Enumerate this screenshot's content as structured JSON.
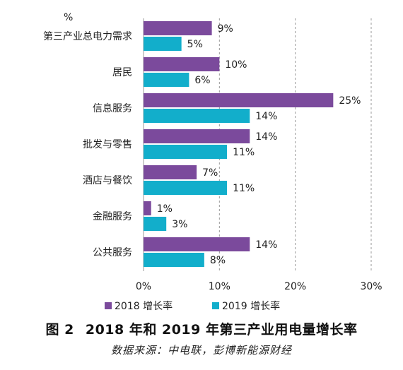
{
  "figure": {
    "number": "图 2",
    "title": "2018 年和 2019 年第三产业用电量增长率",
    "source": "数据来源：中电联，彭博新能源财经"
  },
  "chart_data": {
    "type": "bar",
    "orientation": "horizontal",
    "unit_label": "%",
    "categories": [
      "第三产业总电力需求",
      "居民",
      "信息服务",
      "批发与零售",
      "酒店与餐饮",
      "金融服务",
      "公共服务"
    ],
    "series": [
      {
        "name": "2018 增长率",
        "color": "#7B4A9C",
        "values": [
          9,
          10,
          25,
          14,
          7,
          1,
          14
        ],
        "labels": [
          "9%",
          "10%",
          "25%",
          "14%",
          "7%",
          "1%",
          "14%"
        ]
      },
      {
        "name": "2019 增长率",
        "color": "#12AECB",
        "values": [
          5,
          6,
          14,
          11,
          11,
          3,
          8
        ],
        "labels": [
          "5%",
          "6%",
          "14%",
          "11%",
          "11%",
          "3%",
          "8%"
        ]
      }
    ],
    "xlim": [
      0,
      30
    ],
    "xticks": [
      0,
      10,
      20,
      30
    ],
    "xtick_labels": [
      "0%",
      "10%",
      "20%",
      "30%"
    ],
    "grid": "vertical dashed",
    "legend_position": "bottom"
  }
}
